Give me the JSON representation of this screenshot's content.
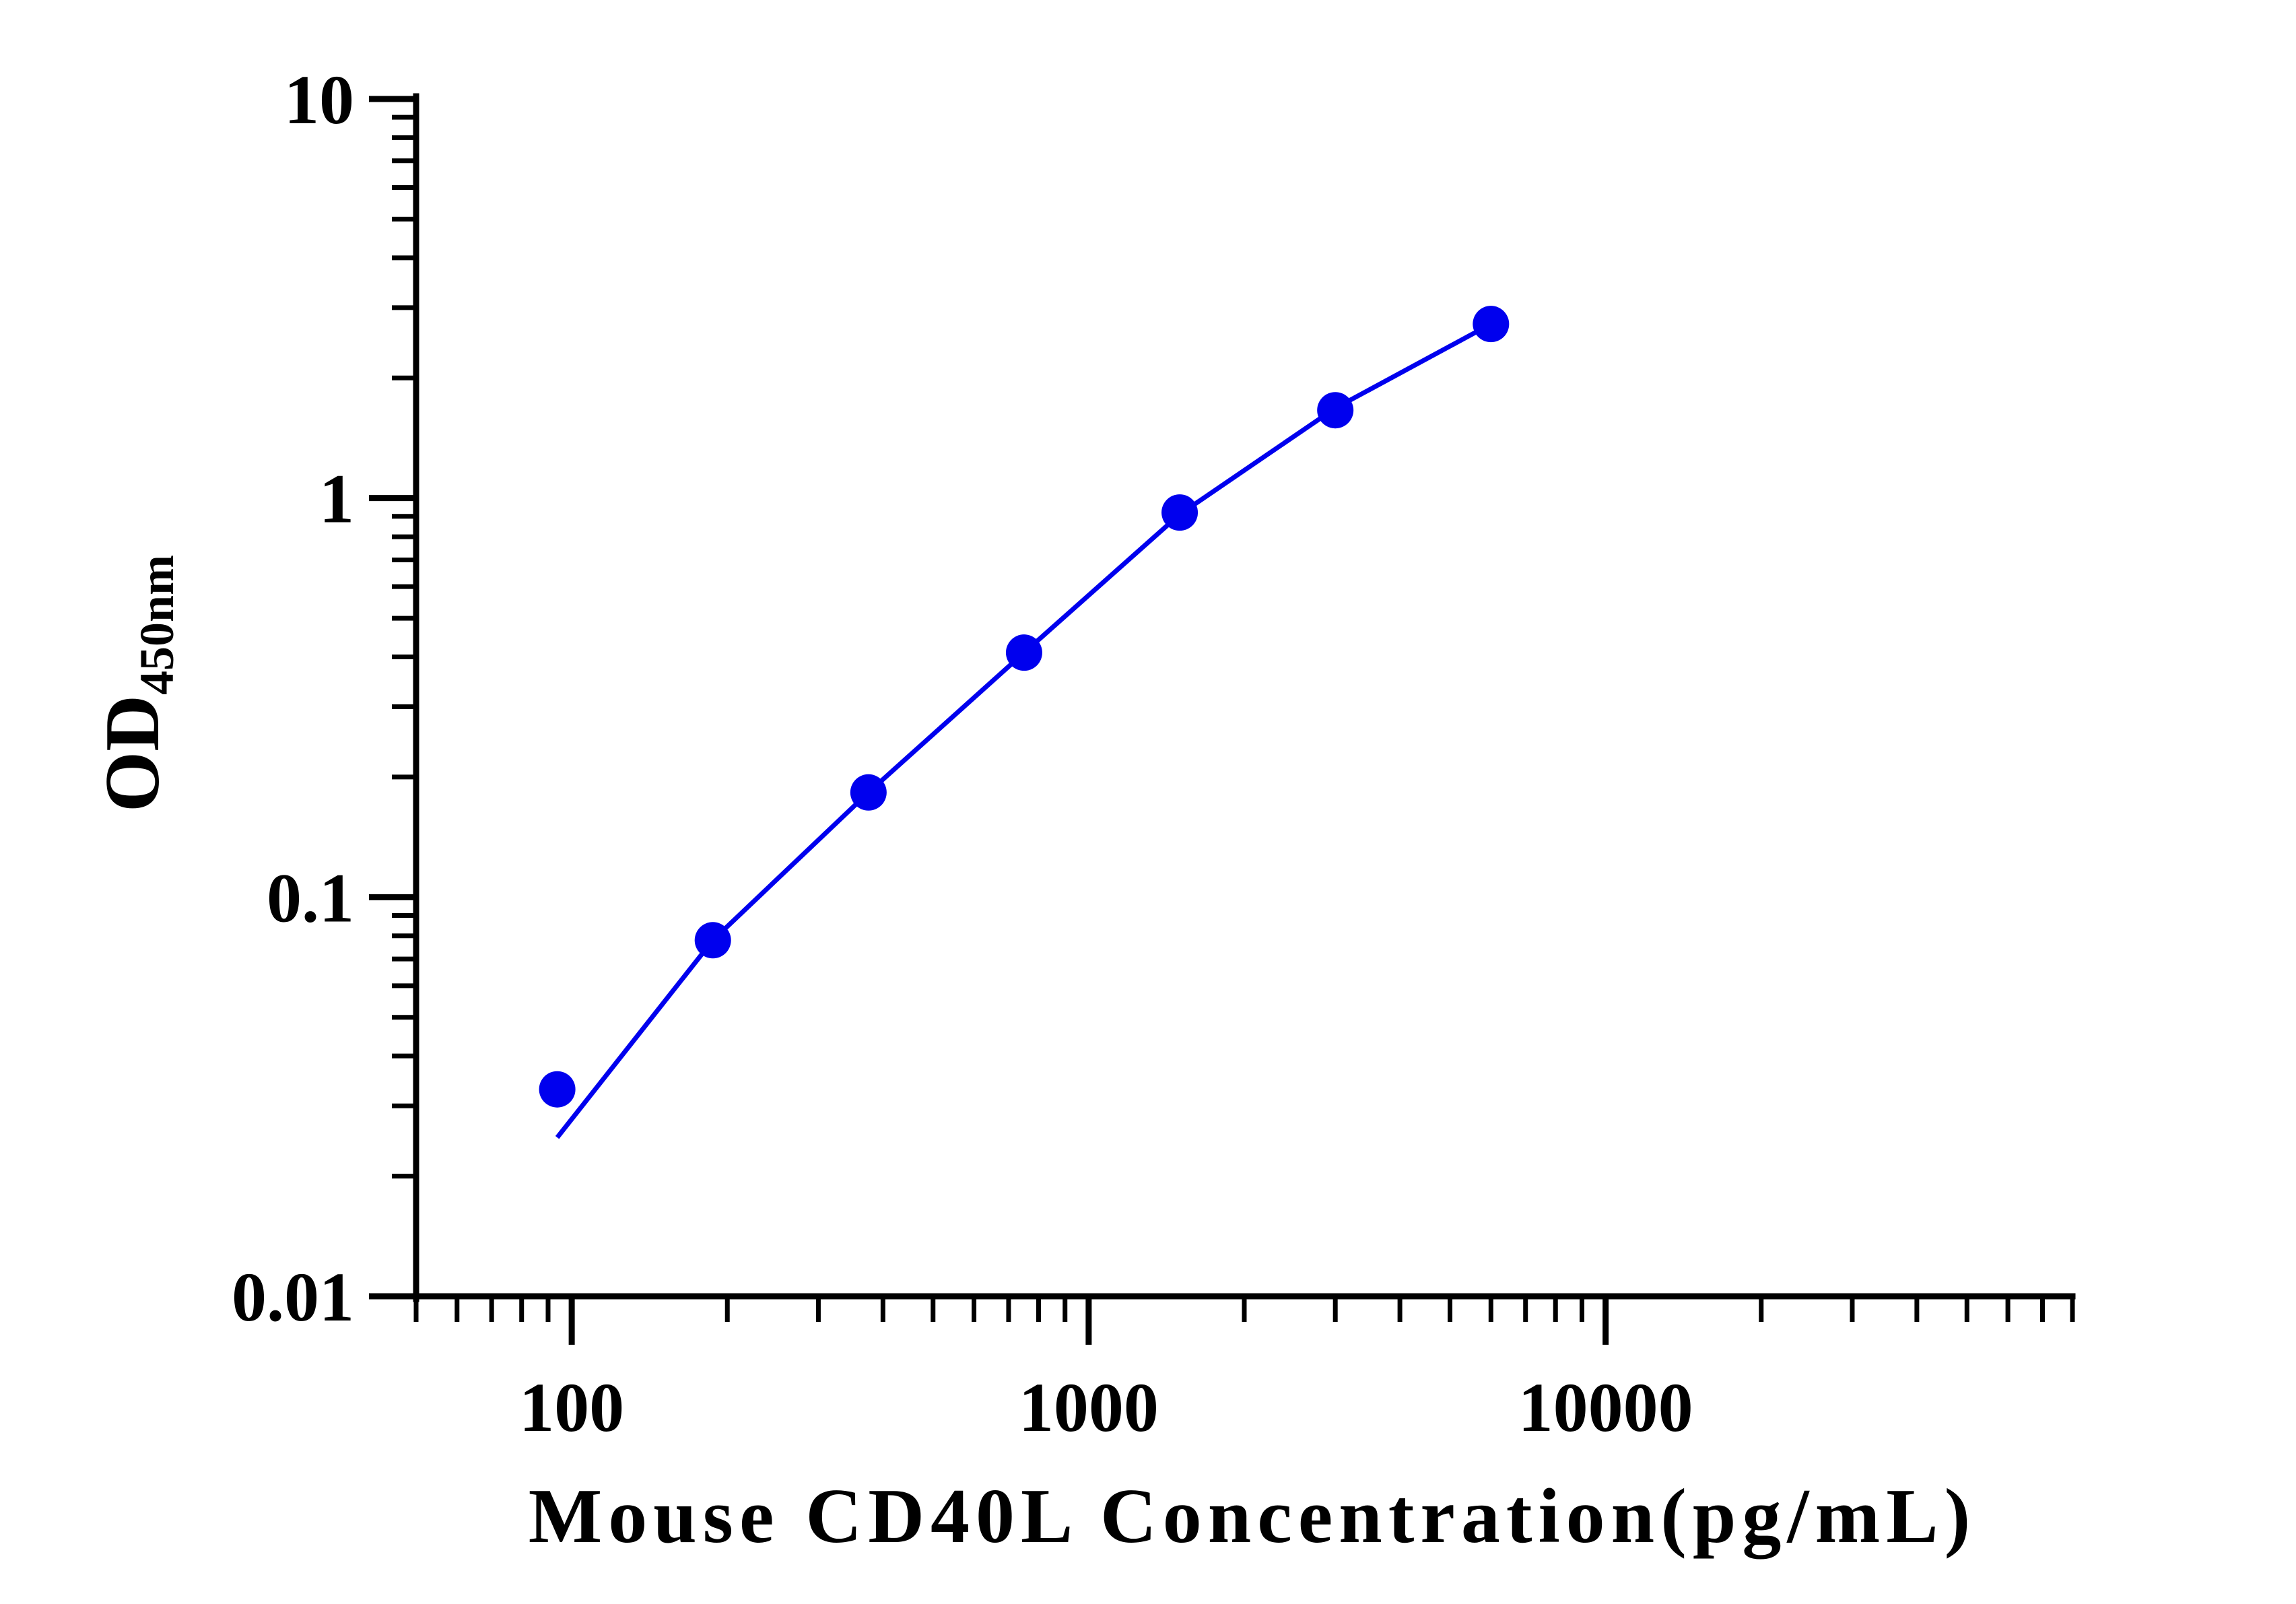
{
  "chart_data": {
    "type": "scatter",
    "xlabel": "Mouse CD40L Concentration(pg/mL)",
    "ylabel_main": "OD",
    "ylabel_sub": "450nm",
    "x_scale": "log",
    "y_scale": "log",
    "xlim": [
      50,
      80000
    ],
    "ylim": [
      0.01,
      10
    ],
    "x_ticks": [
      "100",
      "1000",
      "10000"
    ],
    "y_ticks": [
      "0.01",
      "0.1",
      "1",
      "10"
    ],
    "grid": false,
    "legend": "none",
    "series": [
      {
        "points": [
          {
            "x": 93.75,
            "y": 0.033
          },
          {
            "x": 187.5,
            "y": 0.078
          },
          {
            "x": 375,
            "y": 0.183
          },
          {
            "x": 750,
            "y": 0.41
          },
          {
            "x": 1500,
            "y": 0.92
          },
          {
            "x": 3000,
            "y": 1.66
          },
          {
            "x": 6000,
            "y": 2.73
          }
        ],
        "fit": [
          {
            "x": 93.75,
            "y": 0.025
          },
          {
            "x": 187.5,
            "y": 0.078
          },
          {
            "x": 375,
            "y": 0.183
          },
          {
            "x": 750,
            "y": 0.41
          },
          {
            "x": 1500,
            "y": 0.91
          },
          {
            "x": 3000,
            "y": 1.68
          },
          {
            "x": 6000,
            "y": 2.73
          }
        ]
      }
    ],
    "colors": {
      "series": "#0000ee",
      "axis": "#000000"
    }
  }
}
